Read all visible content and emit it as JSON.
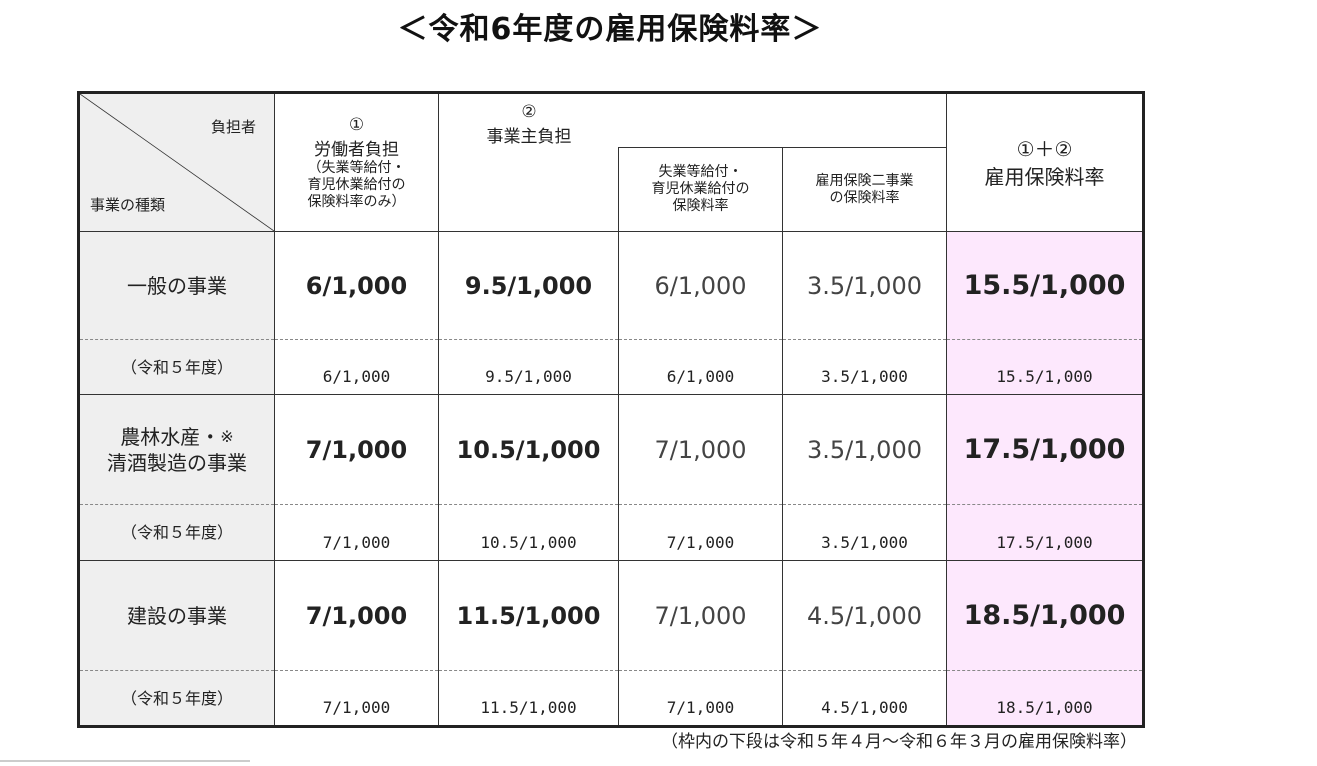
{
  "title": "＜令和6年度の雇用保険料率＞",
  "header": {
    "burden_label": "負担者",
    "business_type_label": "事業の種類",
    "worker": {
      "num": "①",
      "title": "労働者負担",
      "note_line1": "（失業等給付・",
      "note_line2": "育児休業給付の",
      "note_line3": "保険料率のみ）"
    },
    "employer": {
      "num": "②",
      "title": "事業主負担"
    },
    "employer_sub1": {
      "line1": "失業等給付・",
      "line2": "育児休業給付の",
      "line3": "保険料率"
    },
    "employer_sub2": {
      "line1": "雇用保険二事業",
      "line2": "の保険料率"
    },
    "total": {
      "line1": "①＋②",
      "line2": "雇用保険料率"
    }
  },
  "rows": [
    {
      "category_line1": "一般の事業",
      "category_line2": "",
      "mark": "",
      "worker": "6/1,000",
      "employer": "9.5/1,000",
      "unemployment": "6/1,000",
      "two_projects": "3.5/1,000",
      "total": "15.5/1,000",
      "prev_label": "（令和５年度）",
      "prev_worker": "6/1,000",
      "prev_employer": "9.5/1,000",
      "prev_unemployment": "6/1,000",
      "prev_two_projects": "3.5/1,000",
      "prev_total": "15.5/1,000"
    },
    {
      "category_line1": "農林水産・",
      "category_line2": "清酒製造の事業",
      "mark": "※",
      "worker": "7/1,000",
      "employer": "10.5/1,000",
      "unemployment": "7/1,000",
      "two_projects": "3.5/1,000",
      "total": "17.5/1,000",
      "prev_label": "（令和５年度）",
      "prev_worker": "7/1,000",
      "prev_employer": "10.5/1,000",
      "prev_unemployment": "7/1,000",
      "prev_two_projects": "3.5/1,000",
      "prev_total": "17.5/1,000"
    },
    {
      "category_line1": "建設の事業",
      "category_line2": "",
      "mark": "",
      "worker": "7/1,000",
      "employer": "11.5/1,000",
      "unemployment": "7/1,000",
      "two_projects": "4.5/1,000",
      "total": "18.5/1,000",
      "prev_label": "（令和５年度）",
      "prev_worker": "7/1,000",
      "prev_employer": "11.5/1,000",
      "prev_unemployment": "7/1,000",
      "prev_two_projects": "4.5/1,000",
      "prev_total": "18.5/1,000"
    }
  ],
  "footnote": "（枠内の下段は令和５年４月～令和６年３月の雇用保険料率）",
  "colors": {
    "total_column_bg": "#fde8fd",
    "category_bg": "#efefef"
  }
}
